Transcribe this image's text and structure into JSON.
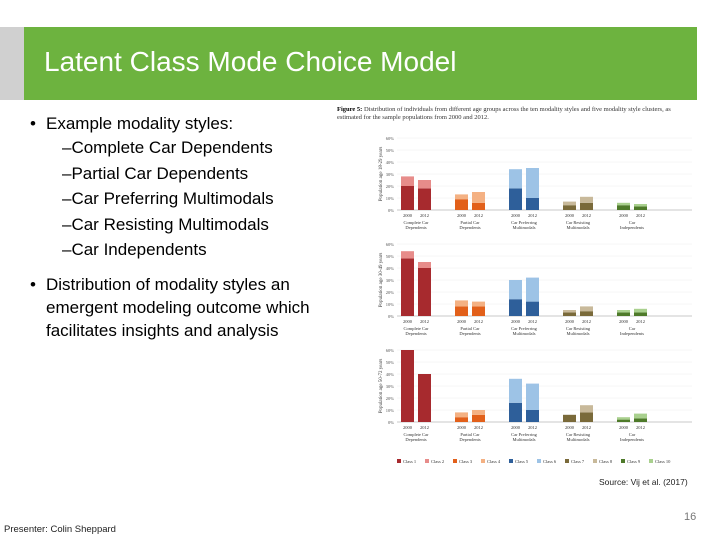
{
  "slide": {
    "title": "Latent Class Mode Choice Model",
    "page_number": "16",
    "presenter": "Presenter: Colin Sheppard",
    "source": "Source: Vij et al. (2017)"
  },
  "bullets": [
    {
      "text": "Example modality styles:",
      "sub": [
        "–Complete Car Dependents",
        "–Partial Car Dependents",
        "–Car Preferring Multimodals",
        "–Car Resisting Multimodals",
        "–Car Independents"
      ]
    },
    {
      "text": "Distribution of modality styles an emergent modeling outcome which facilitates insights and analysis",
      "sub": []
    }
  ],
  "figure": {
    "caption_bold": "Figure 5:",
    "caption": "Distribution of individuals from different age groups across the ten modality styles and five modality style clusters, as estimated for the sample populations from 2000 and 2012.",
    "legend": [
      "Class 1",
      "Class 2",
      "Class 3",
      "Class 4",
      "Class 5",
      "Class 6",
      "Class 7",
      "Class 8",
      "Class 9",
      "Class 10"
    ],
    "colors": [
      "#a72a2e",
      "#e78c8a",
      "#e2601a",
      "#f4b183",
      "#2e5f9a",
      "#9dc3e6",
      "#7a6a3a",
      "#c8b99a",
      "#4e7a2a",
      "#a9d08e"
    ]
  },
  "chart_data": [
    {
      "type": "bar",
      "ylabel": "Population age 18-29 years",
      "yticks": [
        "0%",
        "10%",
        "20%",
        "30%",
        "40%",
        "50%",
        "60%"
      ],
      "ylim": [
        0,
        60
      ],
      "categories": [
        "Complete Car Dependents",
        "Partial Car Dependents",
        "Car Preferring Multimodals",
        "Car Resisting Multimodals",
        "Car Independents"
      ],
      "years": [
        "2000",
        "2012"
      ],
      "values": [
        [
          [
            20,
            8
          ],
          [
            18,
            7
          ]
        ],
        [
          [
            9,
            4
          ],
          [
            6,
            9
          ]
        ],
        [
          [
            18,
            16
          ],
          [
            10,
            25
          ]
        ],
        [
          [
            4,
            3
          ],
          [
            6,
            5
          ]
        ],
        [
          [
            4,
            2
          ],
          [
            3,
            2
          ]
        ]
      ]
    },
    {
      "type": "bar",
      "ylabel": "Population age 30-49 years",
      "yticks": [
        "0%",
        "10%",
        "20%",
        "30%",
        "40%",
        "50%",
        "60%"
      ],
      "ylim": [
        0,
        60
      ],
      "categories": [
        "Complete Car Dependents",
        "Partial Car Dependents",
        "Car Preferring Multimodals",
        "Car Resisting Multimodals",
        "Car Independents"
      ],
      "years": [
        "2000",
        "2012"
      ],
      "values": [
        [
          [
            48,
            6
          ],
          [
            40,
            5
          ]
        ],
        [
          [
            8,
            5
          ],
          [
            8,
            4
          ]
        ],
        [
          [
            14,
            16
          ],
          [
            12,
            20
          ]
        ],
        [
          [
            3,
            2
          ],
          [
            4,
            4
          ]
        ],
        [
          [
            3,
            2
          ],
          [
            3,
            3
          ]
        ]
      ]
    },
    {
      "type": "bar",
      "ylabel": "Population age 50-72 years",
      "yticks": [
        "0%",
        "10%",
        "20%",
        "30%",
        "40%",
        "50%",
        "60%"
      ],
      "ylim": [
        0,
        60
      ],
      "categories": [
        "Complete Car Dependents",
        "Partial Car Dependents",
        "Car Preferring Multimodals",
        "Car Resisting Multimodals",
        "Car Independents"
      ],
      "years": [
        "2000",
        "2012"
      ],
      "values": [
        [
          [
            60,
            0
          ],
          [
            40,
            0
          ]
        ],
        [
          [
            4,
            4
          ],
          [
            6,
            4
          ]
        ],
        [
          [
            16,
            20
          ],
          [
            10,
            22
          ]
        ],
        [
          [
            6,
            0
          ],
          [
            8,
            6
          ]
        ],
        [
          [
            2,
            2
          ],
          [
            3,
            4
          ]
        ]
      ]
    }
  ]
}
